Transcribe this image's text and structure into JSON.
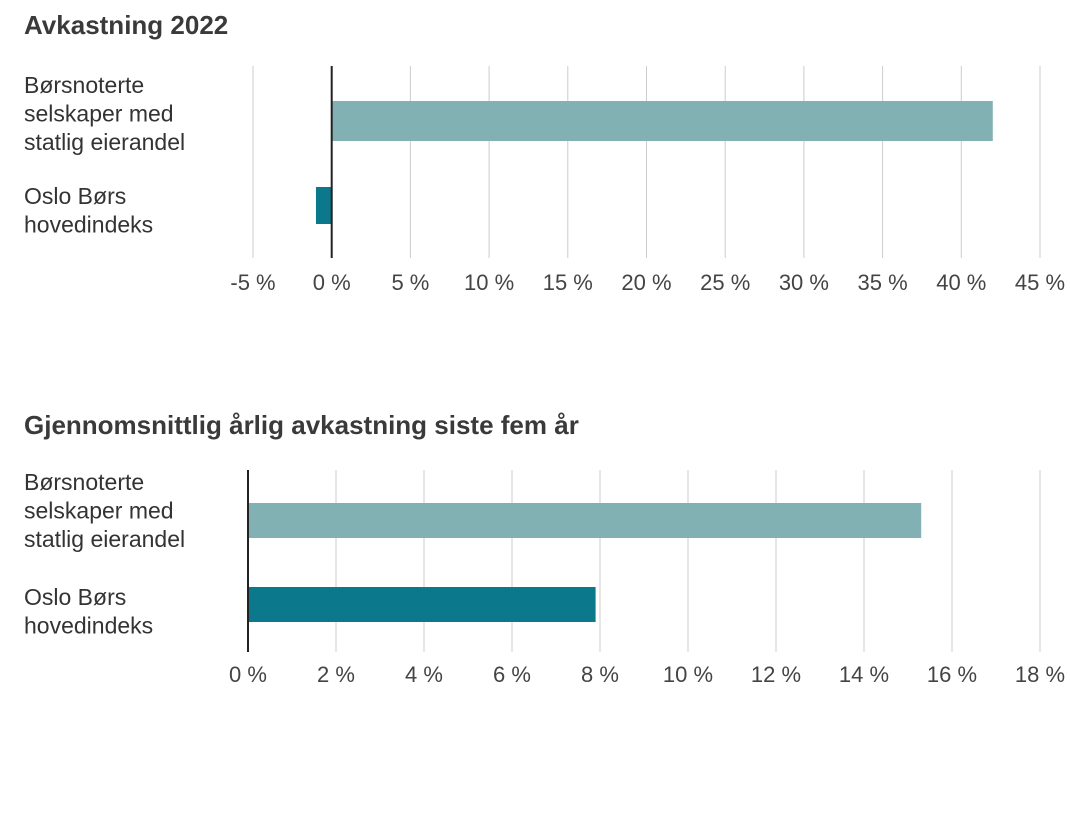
{
  "chart_data": [
    {
      "type": "bar",
      "orientation": "horizontal",
      "title": "Avkastning 2022",
      "categories": [
        [
          "Børsnoterte",
          "selskaper med",
          "statlig eierandel"
        ],
        [
          "Oslo Børs",
          "hovedindeks"
        ]
      ],
      "values": [
        42,
        -1
      ],
      "colors": [
        "#82b1b4",
        "#0c788c"
      ],
      "xlim": [
        -5,
        45
      ],
      "ticks": [
        -5,
        0,
        5,
        10,
        15,
        20,
        25,
        30,
        35,
        40,
        45
      ],
      "tick_labels": [
        "-5 %",
        "0 %",
        "5 %",
        "10 %",
        "15 %",
        "20 %",
        "25 %",
        "30 %",
        "35 %",
        "40 %",
        "45 %"
      ],
      "grid": true,
      "legend": "none"
    },
    {
      "type": "bar",
      "orientation": "horizontal",
      "title": "Gjennomsnittlig årlig avkastning siste fem år",
      "categories": [
        [
          "Børsnoterte",
          "selskaper med",
          "statlig eierandel"
        ],
        [
          "Oslo Børs",
          "hovedindeks"
        ]
      ],
      "values": [
        15.3,
        7.9
      ],
      "colors": [
        "#82b1b4",
        "#0c788c"
      ],
      "xlim": [
        0,
        18
      ],
      "ticks": [
        0,
        2,
        4,
        6,
        8,
        10,
        12,
        14,
        16,
        18
      ],
      "tick_labels": [
        "0 %",
        "2 %",
        "4 %",
        "6 %",
        "8 %",
        "10 %",
        "12 %",
        "14 %",
        "16 %",
        "18 %"
      ],
      "grid": true,
      "legend": "none"
    }
  ]
}
